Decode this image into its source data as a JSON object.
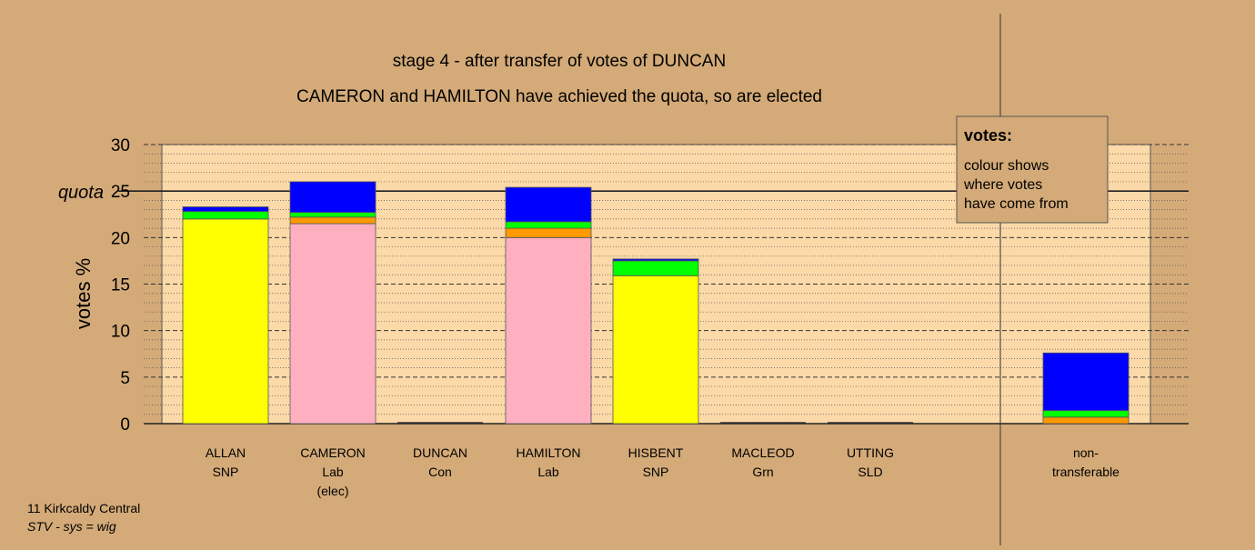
{
  "chart_data": {
    "type": "bar",
    "stacked": true,
    "title": "stage 4 - after transfer of votes of DUNCAN",
    "subtitle": "CAMERON and HAMILTON have achieved the quota, so are elected",
    "ylabel": "votes %",
    "ylim": [
      0,
      30
    ],
    "yticks": [
      "0",
      "5",
      "10",
      "15",
      "20",
      "25",
      "30"
    ],
    "quota": {
      "label": "quota",
      "value": 25
    },
    "grid": true,
    "categories": [
      {
        "name": "ALLAN",
        "party": "SNP",
        "note": ""
      },
      {
        "name": "CAMERON",
        "party": "Lab",
        "note": "(elec)"
      },
      {
        "name": "DUNCAN",
        "party": "Con",
        "note": ""
      },
      {
        "name": "HAMILTON",
        "party": "Lab",
        "note": ""
      },
      {
        "name": "HISBENT",
        "party": "SNP",
        "note": ""
      },
      {
        "name": "MACLEOD",
        "party": "Grn",
        "note": ""
      },
      {
        "name": "UTTING",
        "party": "SLD",
        "note": ""
      },
      {
        "name": "non-",
        "party": "transferable",
        "note": ""
      }
    ],
    "stacks": [
      [
        {
          "value": 22.0,
          "color": "#ffff00"
        },
        {
          "value": 0.8,
          "color": "#00ff00"
        },
        {
          "value": 0.5,
          "color": "#0000ff"
        }
      ],
      [
        {
          "value": 21.5,
          "color": "#ffb0c0"
        },
        {
          "value": 0.7,
          "color": "#ff9900"
        },
        {
          "value": 0.5,
          "color": "#00ff00"
        },
        {
          "value": 3.3,
          "color": "#0000ff"
        }
      ],
      [],
      [
        {
          "value": 20.0,
          "color": "#ffb0c0"
        },
        {
          "value": 1.0,
          "color": "#ff9900"
        },
        {
          "value": 0.7,
          "color": "#00ff00"
        },
        {
          "value": 3.7,
          "color": "#0000ff"
        }
      ],
      [
        {
          "value": 15.9,
          "color": "#ffff00"
        },
        {
          "value": 1.6,
          "color": "#00ff00"
        },
        {
          "value": 0.2,
          "color": "#0000ff"
        }
      ],
      [],
      [],
      [
        {
          "value": 0.7,
          "color": "#ff9900"
        },
        {
          "value": 0.7,
          "color": "#00ff00"
        },
        {
          "value": 6.2,
          "color": "#0000ff"
        }
      ]
    ],
    "legend": {
      "title": "votes:",
      "lines": [
        "colour shows",
        "where votes",
        "have come from"
      ],
      "position": "top-right"
    }
  },
  "footer": {
    "line1": "11 Kirkcaldy Central",
    "line2": "STV - sys = wig"
  }
}
